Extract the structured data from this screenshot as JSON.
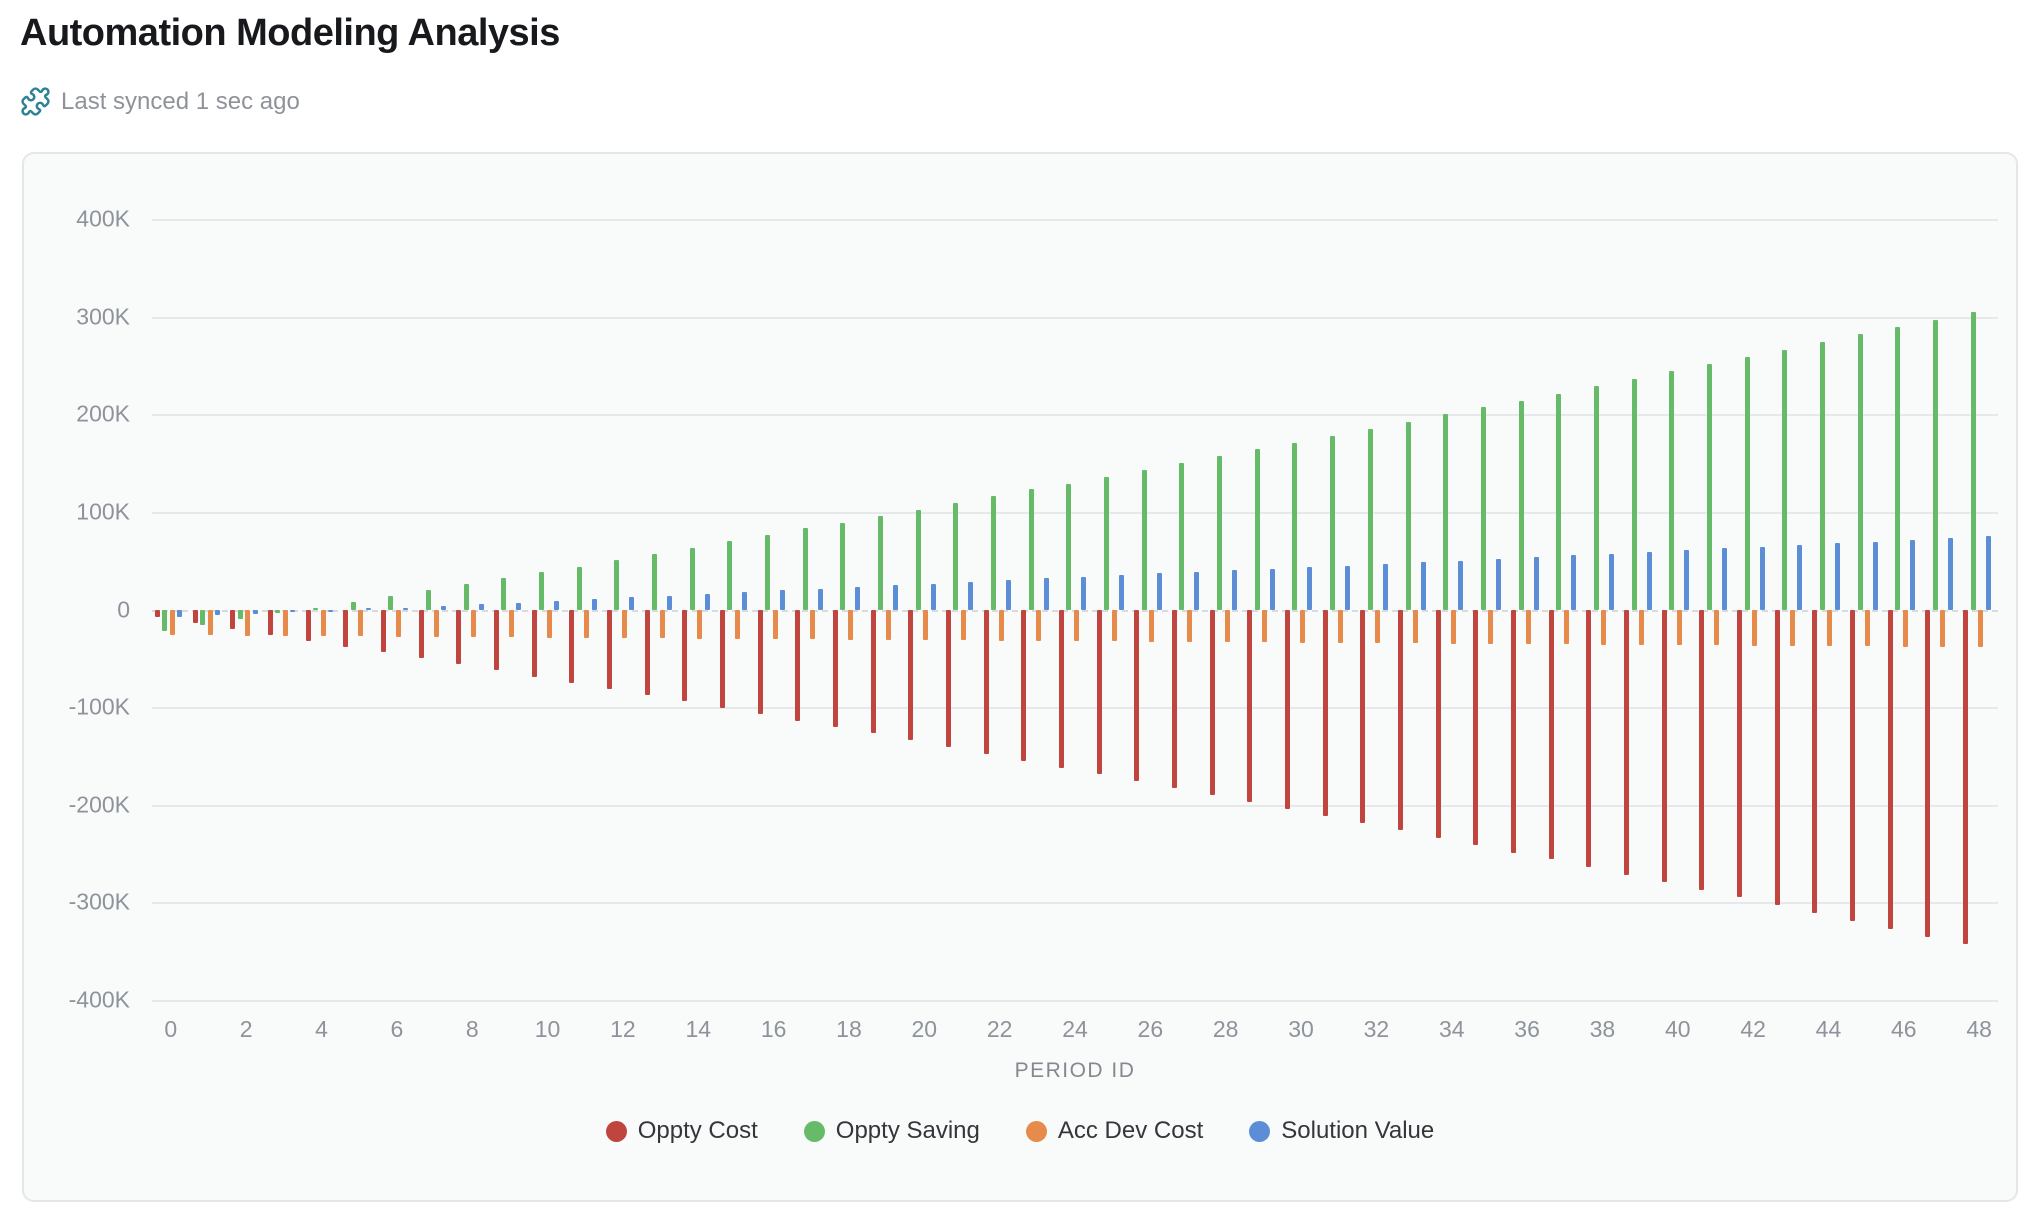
{
  "page": {
    "title": "Automation Modeling Analysis",
    "sync_status": "Last synced 1 sec ago"
  },
  "icons": {
    "sync_icon": "puzzle-piece-icon",
    "sync_icon_color": "#2d8394"
  },
  "colors": {
    "card_background": "#f9fafa",
    "card_border": "#e4e6e9",
    "gridline": "#e7e8ea",
    "zero_line": "#d8dadd",
    "axis_text": "#8e939b",
    "title_text": "#17191c",
    "legend_text": "#33363b"
  },
  "chart_data": {
    "type": "bar",
    "title": "",
    "xlabel": "PERIOD ID",
    "ylabel": "",
    "values_unit": "thousands",
    "ylim_thousands": [
      -400,
      400
    ],
    "y_ticks": [
      "400K",
      "300K",
      "200K",
      "100K",
      "0",
      "-100K",
      "-200K",
      "-300K",
      "-400K"
    ],
    "x": [
      0,
      1,
      2,
      3,
      4,
      5,
      6,
      7,
      8,
      9,
      10,
      11,
      12,
      13,
      14,
      15,
      16,
      17,
      18,
      19,
      20,
      21,
      22,
      23,
      24,
      25,
      26,
      27,
      28,
      29,
      30,
      31,
      32,
      33,
      34,
      35,
      36,
      37,
      38,
      39,
      40,
      41,
      42,
      43,
      44,
      45,
      46,
      47,
      48
    ],
    "x_tick_labels": [
      "0",
      "2",
      "4",
      "6",
      "8",
      "10",
      "12",
      "14",
      "16",
      "18",
      "20",
      "22",
      "24",
      "26",
      "28",
      "30",
      "32",
      "34",
      "36",
      "38",
      "40",
      "42",
      "44",
      "46",
      "48"
    ],
    "x_tick_step": 2,
    "grid": "horizontal",
    "legend_position": "bottom",
    "series": [
      {
        "name": "Oppty Cost",
        "color": "#c0453e",
        "values": [
          -8,
          -14,
          -20,
          -26,
          -32,
          -38,
          -44,
          -50,
          -56,
          -62,
          -69,
          -75,
          -81,
          -88,
          -94,
          -101,
          -107,
          -114,
          -120,
          -127,
          -134,
          -141,
          -148,
          -155,
          -162,
          -169,
          -176,
          -183,
          -190,
          -197,
          -204,
          -212,
          -219,
          -226,
          -234,
          -241,
          -249,
          -256,
          -264,
          -272,
          -279,
          -287,
          -295,
          -303,
          -311,
          -319,
          -327,
          -335,
          -343
        ]
      },
      {
        "name": "Oppty Saving",
        "color": "#66ba68",
        "values": [
          -22,
          -16,
          -10,
          -4,
          2,
          8,
          14,
          20,
          26,
          32,
          38,
          44,
          51,
          57,
          63,
          70,
          76,
          83,
          89,
          96,
          102,
          109,
          116,
          123,
          129,
          136,
          143,
          150,
          157,
          164,
          171,
          178,
          185,
          192,
          200,
          207,
          214,
          221,
          229,
          236,
          244,
          251,
          259,
          266,
          274,
          282,
          289,
          297,
          305
        ]
      },
      {
        "name": "Acc Dev Cost",
        "color": "#e78b4c",
        "values": [
          -26,
          -26,
          -27,
          -27,
          -27,
          -27,
          -28,
          -28,
          -28,
          -28,
          -29,
          -29,
          -29,
          -29,
          -30,
          -30,
          -30,
          -30,
          -31,
          -31,
          -31,
          -31,
          -32,
          -32,
          -32,
          -32,
          -33,
          -33,
          -33,
          -33,
          -34,
          -34,
          -34,
          -34,
          -35,
          -35,
          -35,
          -35,
          -36,
          -36,
          -36,
          -36,
          -37,
          -37,
          -37,
          -37,
          -38,
          -38,
          -38
        ]
      },
      {
        "name": "Solution Value",
        "color": "#5b8ed6",
        "values": [
          -8,
          -6,
          -5,
          -3,
          -1,
          1,
          2,
          4,
          6,
          7,
          9,
          11,
          13,
          14,
          16,
          18,
          20,
          21,
          23,
          25,
          26,
          28,
          30,
          32,
          33,
          35,
          37,
          38,
          40,
          42,
          44,
          45,
          47,
          49,
          50,
          52,
          54,
          56,
          57,
          59,
          61,
          63,
          64,
          66,
          68,
          69,
          71,
          73,
          75
        ]
      }
    ]
  }
}
